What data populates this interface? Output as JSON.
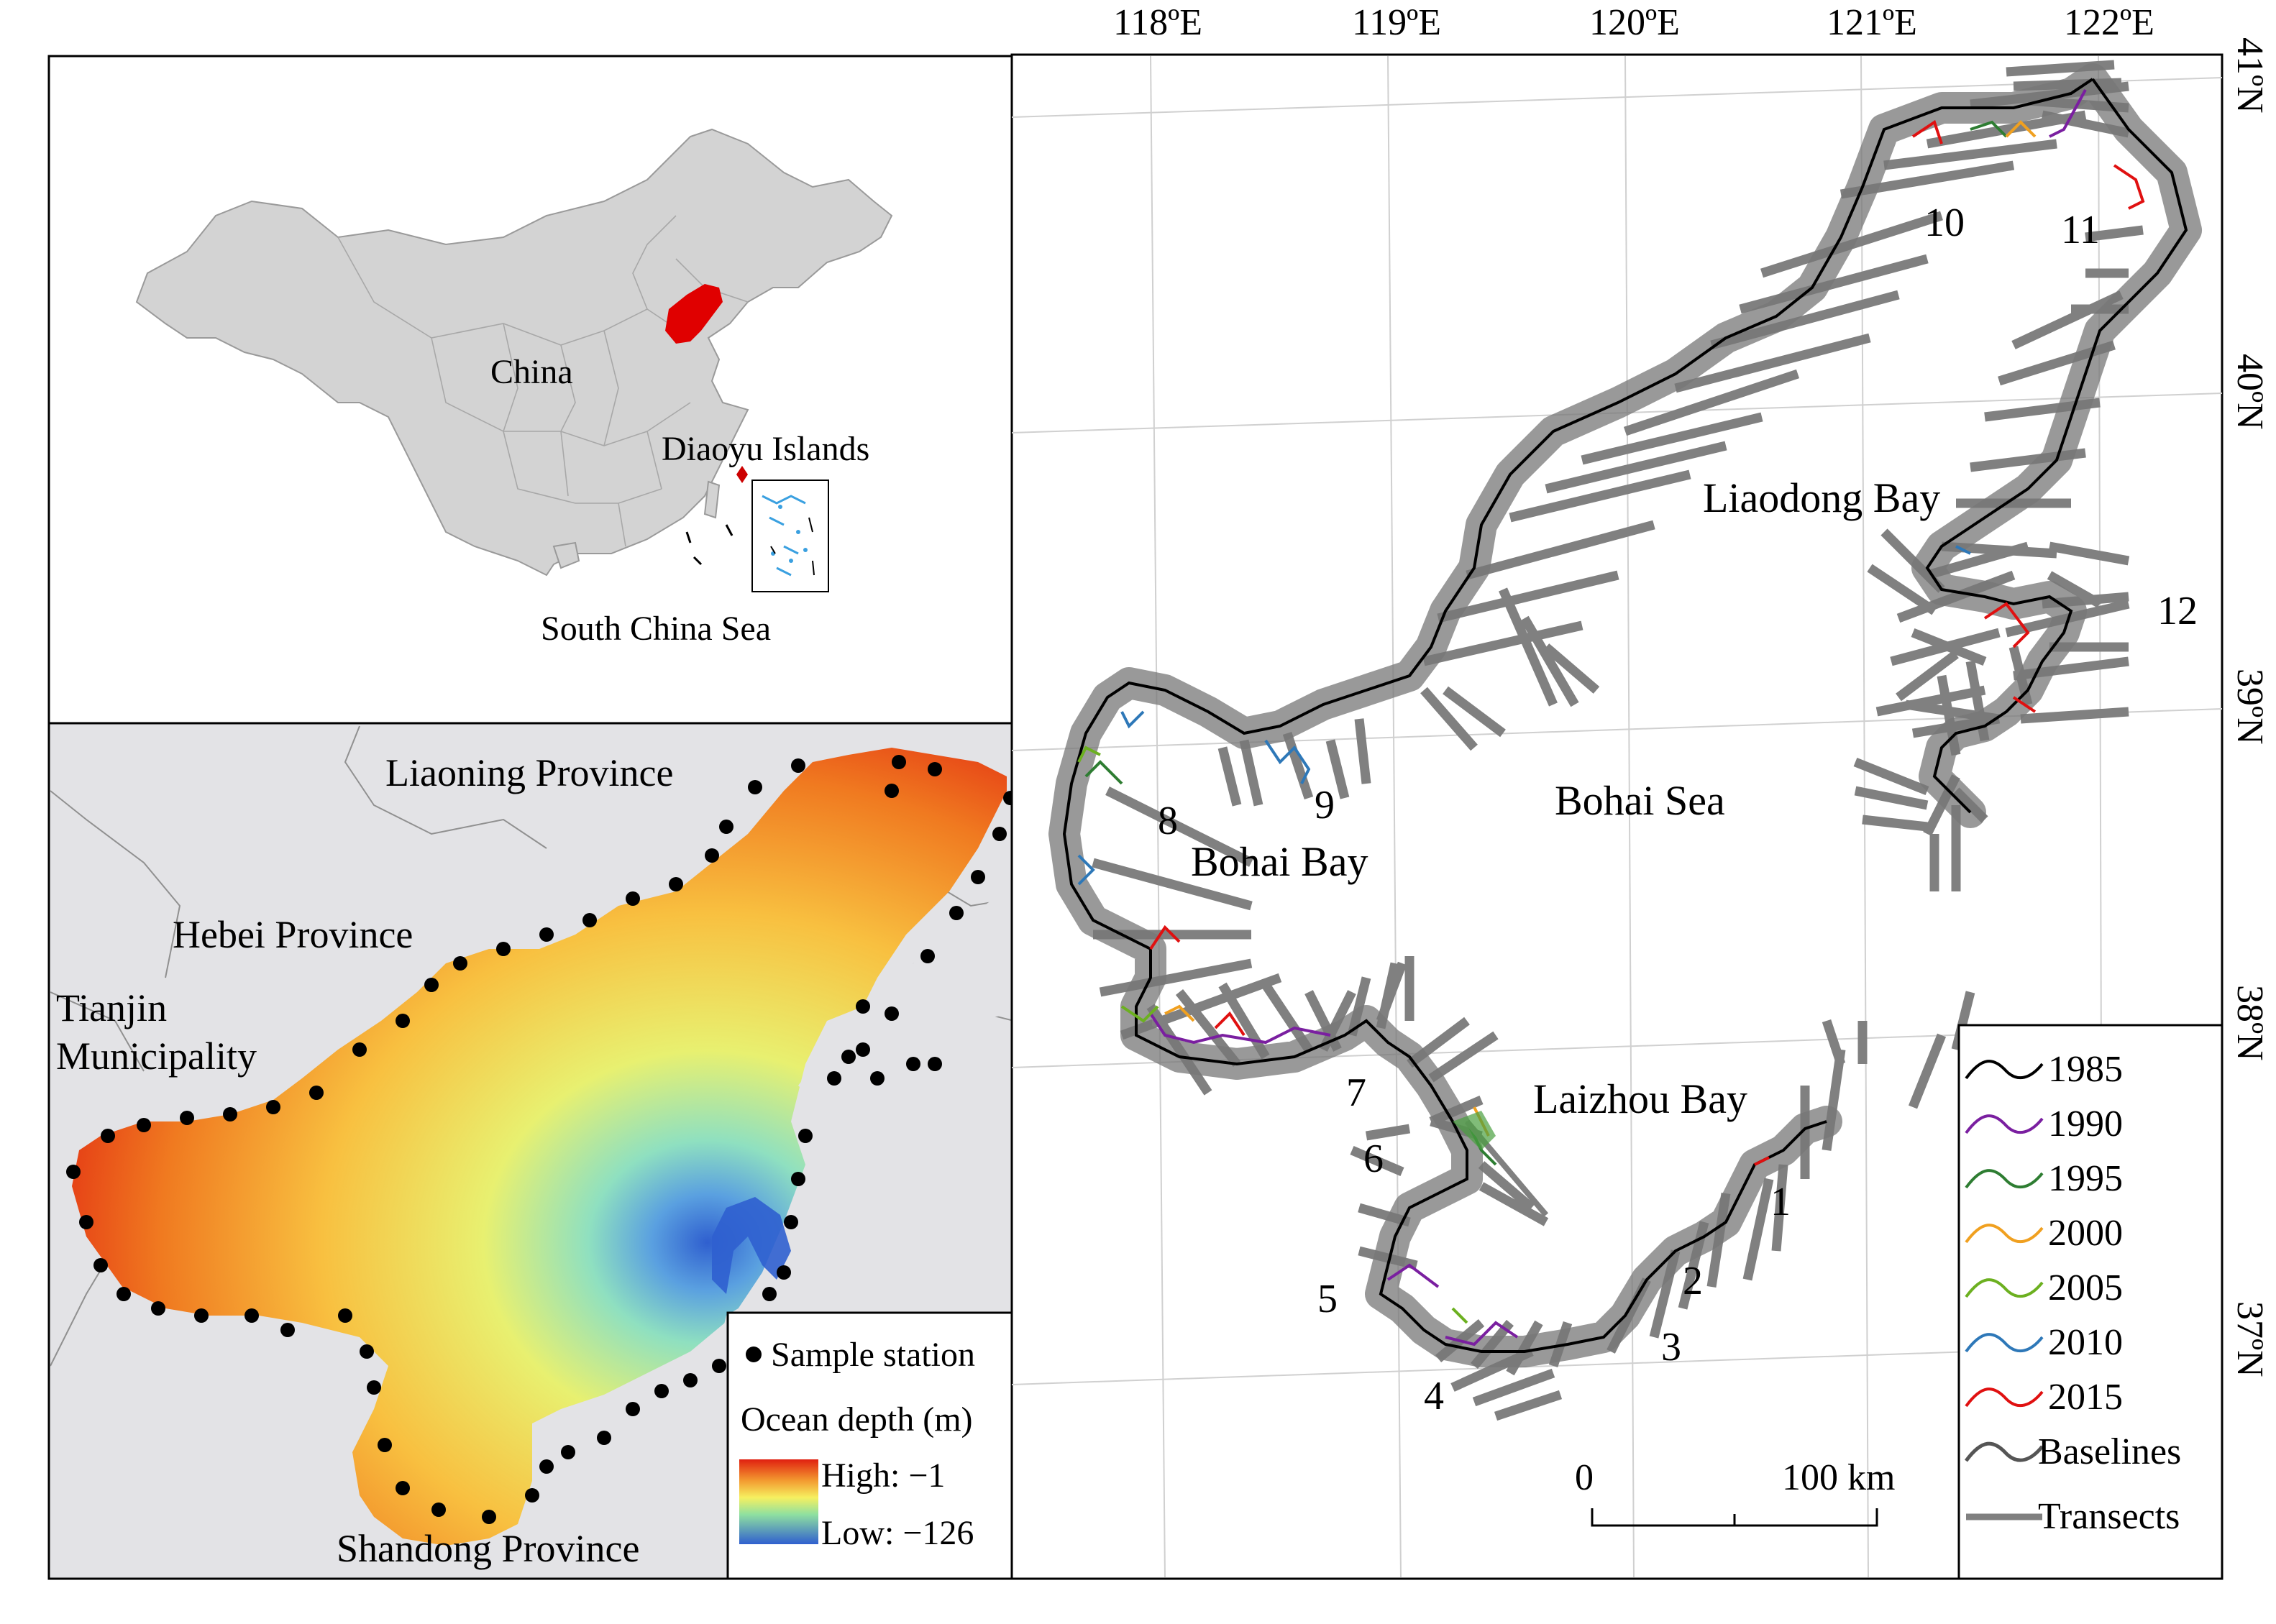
{
  "inset_china": {
    "labels": {
      "country": "China",
      "islands": "Diaoyu Islands",
      "sea": "South China Sea"
    },
    "colors": {
      "land": "#d3d3d3",
      "highlight": "#e00000",
      "islands_marker": "#cc0000",
      "inset_islands": "#3aa0e0"
    }
  },
  "inset_bathymetry": {
    "labels": {
      "liaoning": "Liaoning Province",
      "hebei": "Hebei Province",
      "tianjin_line1": "Tianjin",
      "tianjin_line2": "Municipality",
      "shandong": "Shandong Province"
    },
    "legend": {
      "sample": "Sample station",
      "depth_title": "Ocean depth (m)",
      "high": "High: −1",
      "low": "Low: −126"
    },
    "colors": {
      "shallow": "#e02010",
      "mid_warm": "#f7a030",
      "mid": "#f6f060",
      "mid_cool": "#8fe0a0",
      "deep": "#2f5fcf",
      "station": "#000000"
    }
  },
  "main_map": {
    "lon_labels": [
      "118ºE",
      "119ºE",
      "120ºE",
      "121ºE",
      "122ºE"
    ],
    "lat_labels": [
      "41ºN",
      "40ºN",
      "39ºN",
      "38ºN",
      "37ºN"
    ],
    "region_labels": {
      "liaodong": "Liaodong Bay",
      "bohai_sea": "Bohai Sea",
      "bohai_bay": "Bohai Bay",
      "laizhou": "Laizhou Bay"
    },
    "segment_numbers": [
      "1",
      "2",
      "3",
      "4",
      "5",
      "6",
      "7",
      "8",
      "9",
      "10",
      "11",
      "12"
    ],
    "scale_bar": {
      "zero": "0",
      "end": "100 km"
    },
    "legend": [
      {
        "label": "1985",
        "color": "#000000"
      },
      {
        "label": "1990",
        "color": "#7a1fa0"
      },
      {
        "label": "1995",
        "color": "#2e7d32"
      },
      {
        "label": "2000",
        "color": "#f0a020"
      },
      {
        "label": "2005",
        "color": "#6cb020"
      },
      {
        "label": "2010",
        "color": "#2e78b8"
      },
      {
        "label": "2015",
        "color": "#e01010"
      },
      {
        "label": "Baselines",
        "color": "#555555"
      },
      {
        "label": "Transects",
        "color": "#808080"
      }
    ]
  }
}
